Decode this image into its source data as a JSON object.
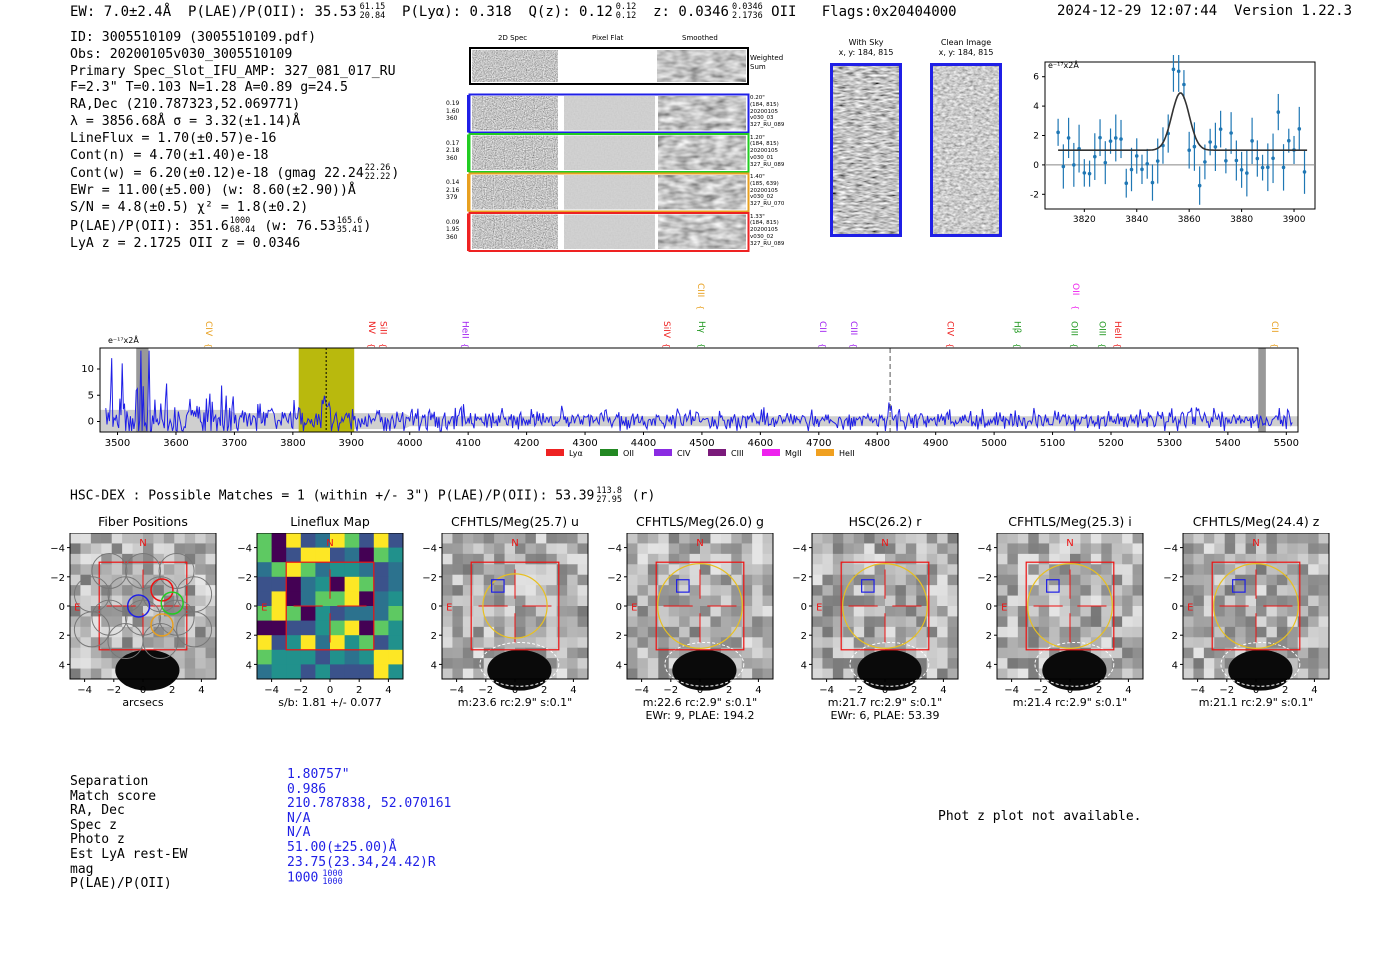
{
  "header": {
    "ew": "EW: 7.0±2.4Å",
    "plae_label": "P(LAE)/P(OII): 35.53",
    "plae_sup": "61.15",
    "plae_sub": "20.84",
    "plya": "P(Lyα): 0.318",
    "qz_label": "Q(z): 0.12",
    "qz_sup": "0.12",
    "qz_sub": "0.12",
    "z_label": "z: 0.0346",
    "z_sup": "0.0346",
    "z_sub": "2.1736",
    "z_line": "OII",
    "flags": "Flags:0x20404000",
    "datetime": "2024-12-29 12:07:44",
    "version": "Version 1.22.3"
  },
  "info": {
    "id": "ID: 3005510109 (3005510109.pdf)",
    "obs": "Obs: 20200105v030_3005510109",
    "primary": "Primary Spec_Slot_IFU_AMP: 327_081_017_RU",
    "fwhm": "F=2.3\"  T=0.103  N=1.28  A=0.89  g=24.5",
    "radec": "RA,Dec (210.787323,52.069771)",
    "lambda": "λ = 3856.68Å  σ = 3.32(±1.14)Å",
    "lineflux": "LineFlux = 1.70(±0.57)e-16",
    "contn": "Cont(n) = 4.70(±1.40)e-18",
    "contw_pre": "Cont(w) = 6.20(±0.12)e-18 (gmag 22.24",
    "contw_sup": "22.26",
    "contw_sub": "22.22",
    "contw_post": ")",
    "ewr": "EWr = 11.00(±5.00) (w: 8.60(±2.90))Å",
    "sn": "S/N = 4.8(±0.5)  χ² = 1.8(±0.2)",
    "plae_pre": "P(LAE)/P(OII): 351.6",
    "plae_sup": "1000",
    "plae_sub": "68.44",
    "plae_mid": " (w: 76.53",
    "plae_w_sup": "165.6",
    "plae_w_sub": "35.41",
    "plae_post": ")",
    "zline": "LyA z = 2.1725   OII z = 0.0346"
  },
  "spec2d": {
    "col_titles": [
      "2D Spec",
      "Pixel Flat",
      "Smoothed"
    ],
    "weighted_label": [
      "Weighted",
      "Sum"
    ],
    "rows": [
      {
        "color": "#1f1fe6",
        "left": [
          "0.19",
          "1.60",
          "360"
        ],
        "right": [
          "0.20\"",
          "(184, 815)",
          "20200105",
          "v030_03",
          "327_RU_089"
        ]
      },
      {
        "color": "#22cc22",
        "left": [
          "0.17",
          "2.18",
          "360"
        ],
        "right": [
          "1.20\"",
          "(184, 815)",
          "20200105",
          "v030_01",
          "327_RU_089"
        ]
      },
      {
        "color": "#e8a020",
        "left": [
          "0.14",
          "2.16",
          "379"
        ],
        "right": [
          "1.40\"",
          "(185, 639)",
          "20200105",
          "v030_02",
          "327_RU_070"
        ]
      },
      {
        "color": "#ee2222",
        "left": [
          "0.09",
          "1.95",
          "360"
        ],
        "right": [
          "1.33\"",
          "(184, 815)",
          "20200105",
          "v030_02",
          "327_RU_089"
        ]
      }
    ]
  },
  "panels": {
    "with_sky_title": "With Sky",
    "clean_title": "Clean Image",
    "xy_label": "x, y: 184, 815"
  },
  "zoom_chart": {
    "unit_label": "e⁻¹⁷x2Å",
    "ylim": [
      -3,
      7
    ],
    "xlim": [
      3805,
      3908
    ],
    "yticks": [
      -2,
      0,
      2,
      4,
      6
    ],
    "xticks": [
      3820,
      3840,
      3860,
      3880,
      3900
    ],
    "fit_center": 3856.68,
    "fit_sigma": 3.32,
    "fit_amp": 3.9,
    "fit_base": 1.0
  },
  "chart_data": {
    "type": "line",
    "title": "",
    "xlabel": "",
    "ylabel": "e⁻¹⁷x2Å",
    "xlim": [
      3470,
      5520
    ],
    "ylim": [
      -2,
      14
    ],
    "yticks": [
      0,
      5,
      10
    ],
    "xticks": [
      3500,
      3600,
      3700,
      3800,
      3900,
      4000,
      4100,
      4200,
      4300,
      4400,
      4500,
      4600,
      4700,
      4800,
      4900,
      5000,
      5100,
      5200,
      5300,
      5400,
      5500
    ],
    "series": [
      {
        "name": "spectrum",
        "color": "#1f1fe6",
        "values": "noisy flux near 0 with large spikes below 3560Å, emission peak ~3857Å, ~4822Å"
      }
    ],
    "highlight_band": [
      3810,
      3905
    ],
    "dotted_line": 3857,
    "dashed_line": 4822,
    "gray_bands": [
      [
        3532,
        3553
      ],
      [
        5452,
        5465
      ]
    ],
    "line_labels": [
      {
        "name": "CIV",
        "wave": 3646,
        "color": "#e8a020",
        "tier": 1
      },
      {
        "name": "NV",
        "wave": 3925,
        "color": "#ee2222",
        "tier": 1
      },
      {
        "name": "SiII",
        "wave": 3945,
        "color": "#ee2222",
        "tier": 1
      },
      {
        "name": "HeII",
        "wave": 4085,
        "color": "#a020f0",
        "tier": 1
      },
      {
        "name": "SiIV",
        "wave": 4430,
        "color": "#ee2222",
        "tier": 1
      },
      {
        "name": "CIII",
        "wave": 4488,
        "color": "#e8a020",
        "tier": 2
      },
      {
        "name": "Hγ",
        "wave": 4490,
        "color": "#229922",
        "tier": 1
      },
      {
        "name": "CII",
        "wave": 4697,
        "color": "#a020f0",
        "tier": 1
      },
      {
        "name": "CIII",
        "wave": 4750,
        "color": "#a020f0",
        "tier": 1
      },
      {
        "name": "CIV",
        "wave": 4915,
        "color": "#ee2222",
        "tier": 1
      },
      {
        "name": "Hβ",
        "wave": 5030,
        "color": "#229922",
        "tier": 1
      },
      {
        "name": "OII",
        "wave": 5130,
        "color": "#ee22ee",
        "tier": 2
      },
      {
        "name": "OIII",
        "wave": 5127,
        "color": "#229922",
        "tier": 1
      },
      {
        "name": "OIII",
        "wave": 5175,
        "color": "#229922",
        "tier": 1
      },
      {
        "name": "HeII",
        "wave": 5202,
        "color": "#ee2222",
        "tier": 1
      },
      {
        "name": "CII",
        "wave": 5470,
        "color": "#e8a020",
        "tier": 1
      }
    ],
    "legend": [
      {
        "label": "Lyα",
        "color": "#ee2222"
      },
      {
        "label": "OII",
        "color": "#228822"
      },
      {
        "label": "CIV",
        "color": "#8a2be2"
      },
      {
        "label": "CIII",
        "color": "#7a1a7a"
      },
      {
        "label": "MgII",
        "color": "#ee22ee"
      },
      {
        "label": "HeII",
        "color": "#f0a020"
      }
    ]
  },
  "hsc": {
    "heading_pre": "HSC-DEX : Possible Matches = 1 (within +/- 3\")  P(LAE)/P(OII): 53.39",
    "heading_sup": "113.8",
    "heading_sub": "27.95",
    "heading_post": " (r)",
    "panels": [
      {
        "title": "Fiber Positions",
        "caption": [
          "arcsecs"
        ],
        "type": "fiber"
      },
      {
        "title": "Lineflux Map",
        "caption": [
          "s/b: 1.81 +/- 0.077"
        ],
        "type": "flux"
      },
      {
        "title": "CFHTLS/Meg(25.7) u",
        "caption": [
          "m:23.6 rc:2.9\"  s:0.1\""
        ],
        "type": "cut",
        "circle": 2.2
      },
      {
        "title": "CFHTLS/Meg(26.0) g",
        "caption": [
          "m:22.6 rc:2.9\"  s:0.1\"",
          "EWr: 9, PLAE: 194.2"
        ],
        "type": "cut",
        "circle": 2.9
      },
      {
        "title": "HSC(26.2) r",
        "caption": [
          "m:21.7 rc:2.9\"  s:0.1\"",
          "EWr: 6, PLAE: 53.39"
        ],
        "type": "cut",
        "circle": 2.9
      },
      {
        "title": "CFHTLS/Meg(25.3) i",
        "caption": [
          "m:21.4 rc:2.9\"  s:0.1\""
        ],
        "type": "cut",
        "circle": 2.9
      },
      {
        "title": "CFHTLS/Meg(24.4) z",
        "caption": [
          "m:21.1 rc:2.9\"  s:0.1\""
        ],
        "type": "cut",
        "circle": 2.9
      }
    ],
    "axis_ticks": [
      "−4",
      "−2",
      "0",
      "2",
      "4"
    ],
    "north": "N",
    "east": "E"
  },
  "match_table": {
    "labels": [
      "Separation",
      "Match score",
      "RA, Dec",
      "Spec z",
      "Photo z",
      "Est LyA rest-EW",
      "mag",
      "P(LAE)/P(OII)"
    ],
    "values": [
      "1.80757\"",
      "0.986",
      "210.787838, 52.070161",
      "N/A",
      "N/A",
      "51.00(±25.00)Å",
      "23.75(23.34,24.42)R",
      "1000"
    ],
    "plae_sup": "1000",
    "plae_sub": "1000"
  },
  "photz_note": "Phot z plot not available."
}
